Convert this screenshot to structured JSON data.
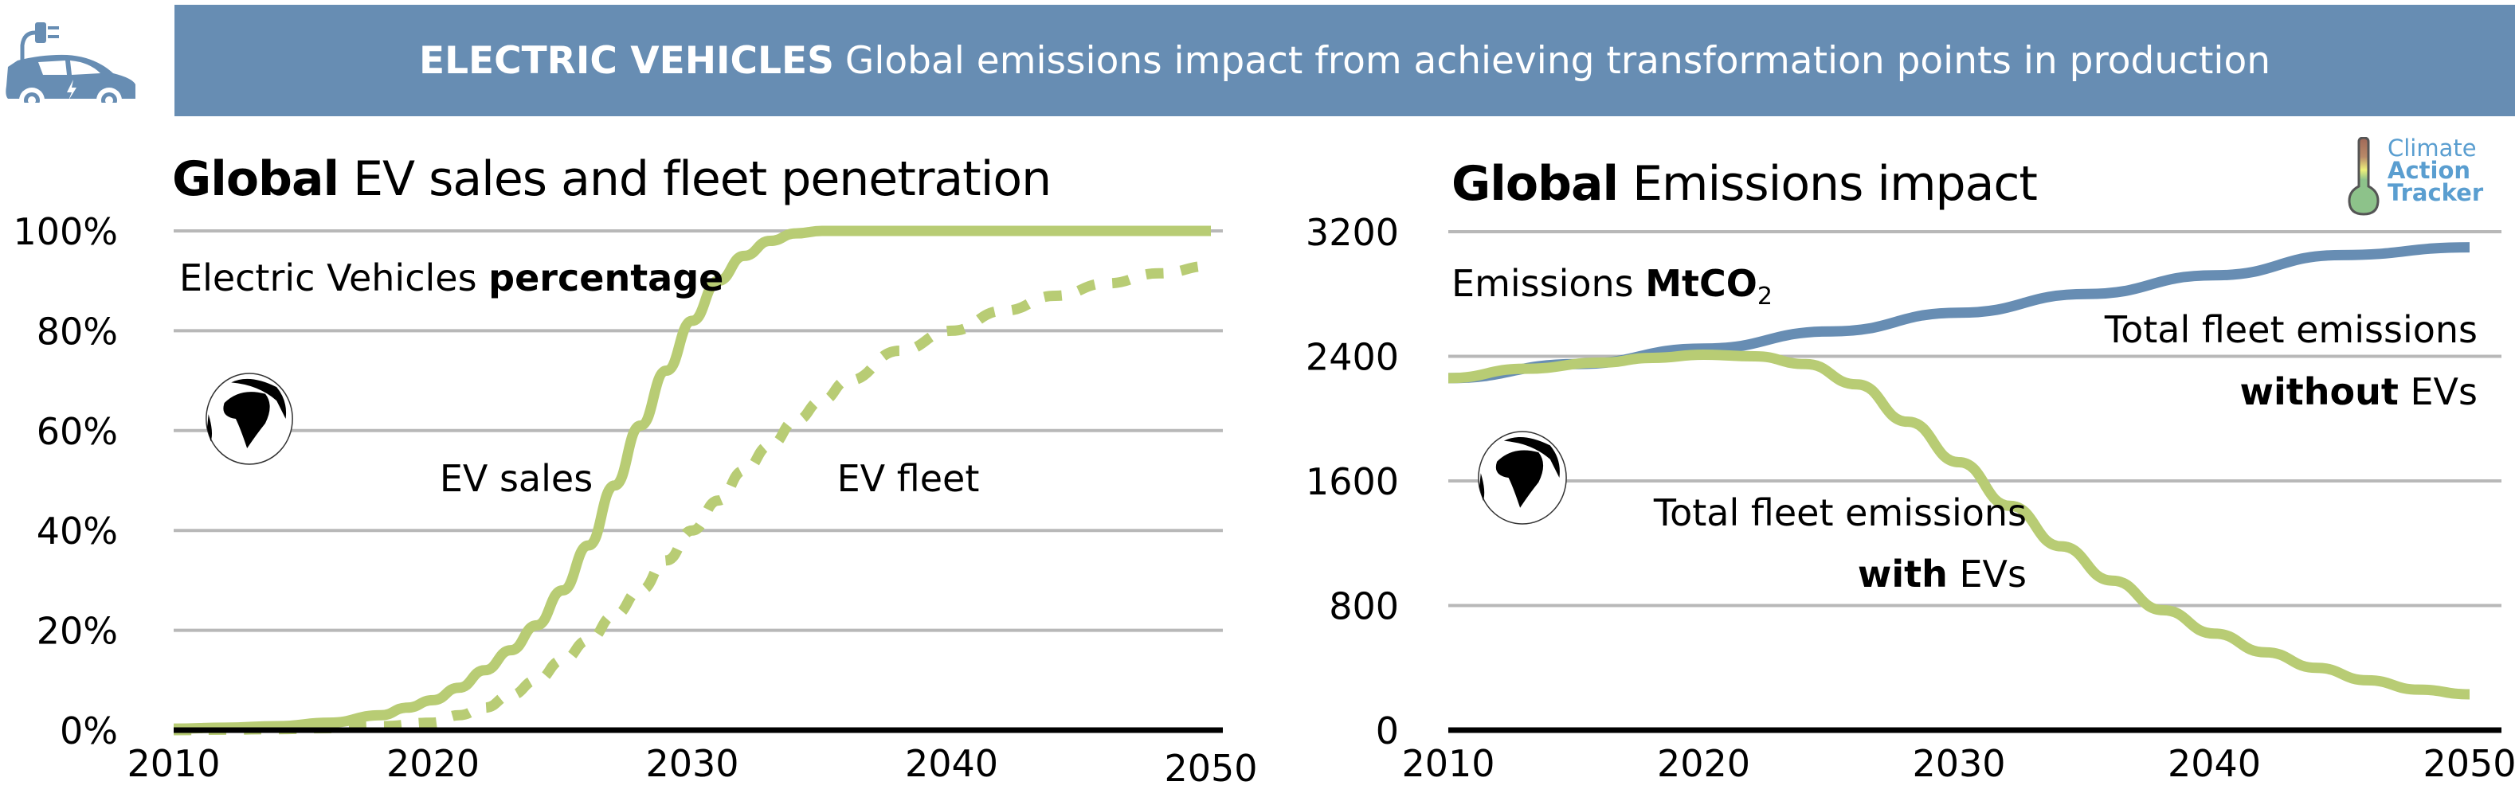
{
  "header": {
    "title_bold": "ELECTRIC VEHICLES",
    "title_rest": "Global emissions impact from achieving transformation points in production",
    "banner_color": "#678db3",
    "icon": "electric-car-icon"
  },
  "logo": {
    "line1": "Climate",
    "line2": "Action",
    "line3": "Tracker",
    "icon": "thermometer-icon",
    "color": "#5a9ed0"
  },
  "colors": {
    "green": "#b8cc74",
    "blue": "#678db3",
    "grid": "#b8b8b8",
    "axis": "#000000"
  },
  "chart_data": [
    {
      "type": "line",
      "title_bold": "Global",
      "title_rest": "EV sales and fleet penetration",
      "annotation_regular": "Electric Vehicles ",
      "annotation_bold": "percentage",
      "xlabel": "",
      "ylabel": "",
      "xlim": [
        2010,
        2050
      ],
      "ylim": [
        0,
        100
      ],
      "x_ticks": [
        "2010",
        "2020",
        "2030",
        "2040",
        "2050"
      ],
      "y_ticks": [
        "0%",
        "20%",
        "40%",
        "60%",
        "80%",
        "100%"
      ],
      "y_tick_values": [
        0,
        20,
        40,
        60,
        80,
        100
      ],
      "grid": true,
      "legend": "inline-labels",
      "series": [
        {
          "name": "EV sales",
          "style": "solid",
          "color": "#b8cc74",
          "x": [
            2010,
            2012,
            2014,
            2016,
            2018,
            2019,
            2020,
            2021,
            2022,
            2023,
            2024,
            2025,
            2026,
            2027,
            2028,
            2029,
            2030,
            2031,
            2032,
            2033,
            2034,
            2035,
            2040,
            2045,
            2050
          ],
          "values": [
            0.3,
            0.5,
            0.8,
            1.5,
            3,
            4.5,
            6,
            8.5,
            12,
            16,
            21,
            28,
            37,
            49,
            61,
            72,
            82,
            90,
            95,
            98,
            99.5,
            100,
            100,
            100,
            100
          ]
        },
        {
          "name": "EV fleet",
          "style": "dashed",
          "color": "#b8cc74",
          "x": [
            2010,
            2012,
            2014,
            2016,
            2018,
            2020,
            2021,
            2022,
            2023,
            2024,
            2025,
            2026,
            2027,
            2028,
            2029,
            2030,
            2031,
            2032,
            2033,
            2034,
            2035,
            2036,
            2038,
            2040,
            2042,
            2044,
            2046,
            2048,
            2050
          ],
          "values": [
            0,
            0.1,
            0.2,
            0.4,
            0.8,
            1.5,
            3,
            4.5,
            7,
            10,
            14,
            18,
            23,
            28,
            34,
            40,
            46,
            52,
            57,
            62,
            66,
            70,
            76,
            80,
            84,
            87,
            89.5,
            91.5,
            93
          ]
        }
      ],
      "labels": {
        "sales": "EV sales",
        "fleet": "EV fleet"
      }
    },
    {
      "type": "line",
      "title_bold": "Global",
      "title_rest": "Emissions impact",
      "annotation_regular": "Emissions ",
      "annotation_bold": "MtCO",
      "annotation_sub": "2",
      "xlabel": "",
      "ylabel": "",
      "xlim": [
        2010,
        2050
      ],
      "ylim": [
        0,
        3200
      ],
      "x_ticks": [
        "2010",
        "2020",
        "2030",
        "2040",
        "2050"
      ],
      "y_ticks": [
        "0",
        "800",
        "1600",
        "2400",
        "3200"
      ],
      "y_tick_values": [
        0,
        800,
        1600,
        2400,
        3200
      ],
      "grid": true,
      "legend": "inline-labels",
      "series": [
        {
          "name": "Total fleet emissions without EVs",
          "style": "solid",
          "color": "#678db3",
          "x": [
            2010,
            2015,
            2020,
            2025,
            2030,
            2035,
            2040,
            2045,
            2050
          ],
          "values": [
            2260,
            2350,
            2450,
            2560,
            2680,
            2800,
            2920,
            3050,
            3100
          ]
        },
        {
          "name": "Total fleet emissions with EVs",
          "style": "solid",
          "color": "#b8cc74",
          "x": [
            2010,
            2013,
            2016,
            2018,
            2020,
            2022,
            2024,
            2026,
            2028,
            2030,
            2032,
            2034,
            2036,
            2038,
            2040,
            2042,
            2044,
            2046,
            2048,
            2050
          ],
          "values": [
            2260,
            2320,
            2360,
            2390,
            2410,
            2400,
            2350,
            2220,
            1980,
            1720,
            1440,
            1180,
            960,
            770,
            620,
            500,
            400,
            320,
            260,
            230
          ]
        }
      ],
      "labels": {
        "without_line1": "Total fleet emissions",
        "without_bold": "without",
        "without_rest": " EVs",
        "with_line1": "Total fleet emissions",
        "with_bold": "with",
        "with_rest": " EVs"
      }
    }
  ]
}
